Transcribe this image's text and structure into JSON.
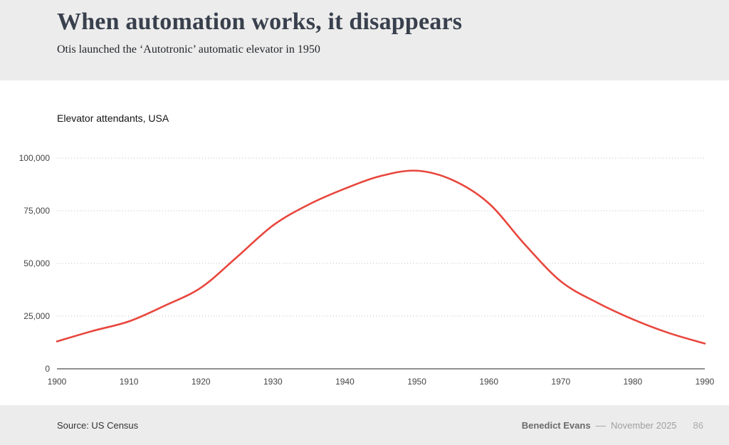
{
  "header": {
    "title": "When automation works, it disappears",
    "subtitle": "Otis launched the ‘Autotronic’ automatic elevator in 1950"
  },
  "chart_data": {
    "type": "line",
    "title": "Elevator attendants, USA",
    "series_name": "Elevator attendants",
    "xlabel": "",
    "ylabel": "",
    "xlim": [
      1900,
      1990
    ],
    "ylim": [
      0,
      100000
    ],
    "x_ticks": [
      1900,
      1910,
      1920,
      1930,
      1940,
      1950,
      1960,
      1970,
      1980,
      1990
    ],
    "y_ticks": [
      0,
      25000,
      50000,
      75000,
      100000
    ],
    "grid": "horizontal-dotted",
    "legend": "none",
    "line_color": "#e8463d",
    "x": [
      1900,
      1905,
      1910,
      1915,
      1920,
      1925,
      1930,
      1935,
      1940,
      1945,
      1950,
      1955,
      1960,
      1965,
      1970,
      1975,
      1980,
      1985,
      1990
    ],
    "values": [
      13000,
      18000,
      22500,
      30000,
      38500,
      53000,
      68000,
      78000,
      85500,
      91500,
      94000,
      89500,
      78500,
      59000,
      41500,
      31500,
      23500,
      17000,
      12000
    ]
  },
  "footer": {
    "source": "Source: US Census",
    "author": "Benedict Evans",
    "separator": "––",
    "date": "November 2025",
    "page_number": "86"
  }
}
